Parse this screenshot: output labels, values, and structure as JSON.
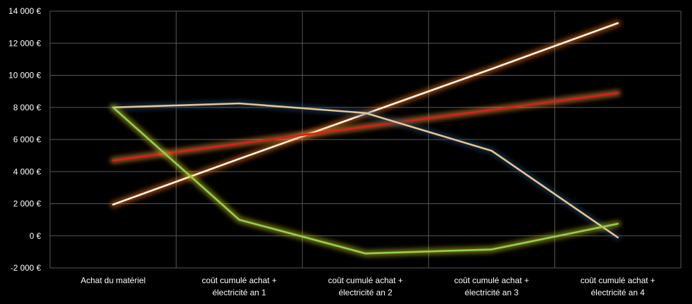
{
  "chart_data": {
    "type": "line",
    "categories": [
      [
        "Achat du matériel"
      ],
      [
        "coût cumulé achat +",
        "électricité an 1"
      ],
      [
        "coût cumulé achat +",
        "électricité an 2"
      ],
      [
        "coût cumulé achat +",
        "électricité an 3"
      ],
      [
        "coût cumulé achat +",
        "électricité an 4"
      ]
    ],
    "y_ticks": [
      "-2 000 €",
      "0 €",
      "2 000 €",
      "4 000 €",
      "6 000 €",
      "8 000 €",
      "10 000 €",
      "12 000 €",
      "14 000 €"
    ],
    "ylim": [
      -2000,
      14000
    ],
    "y_step": 2000,
    "grid": true,
    "background": "#000000",
    "grid_color": "#595959",
    "series": [
      {
        "color": "#fff8ee",
        "glow": "#ff7a1a",
        "values": [
          1950,
          4800,
          7600,
          10400,
          13250
        ]
      },
      {
        "color": "#e01b1b",
        "glow": "#ff9a3a",
        "values": [
          4700,
          5750,
          6800,
          7850,
          8900
        ]
      },
      {
        "color": "#e8c491",
        "glow": "#2a4a70",
        "values": [
          8000,
          8250,
          7650,
          5300,
          -100
        ]
      },
      {
        "color": "#92d050",
        "glow": "#c8c820",
        "values": [
          8000,
          1000,
          -1100,
          -850,
          750
        ]
      }
    ]
  }
}
